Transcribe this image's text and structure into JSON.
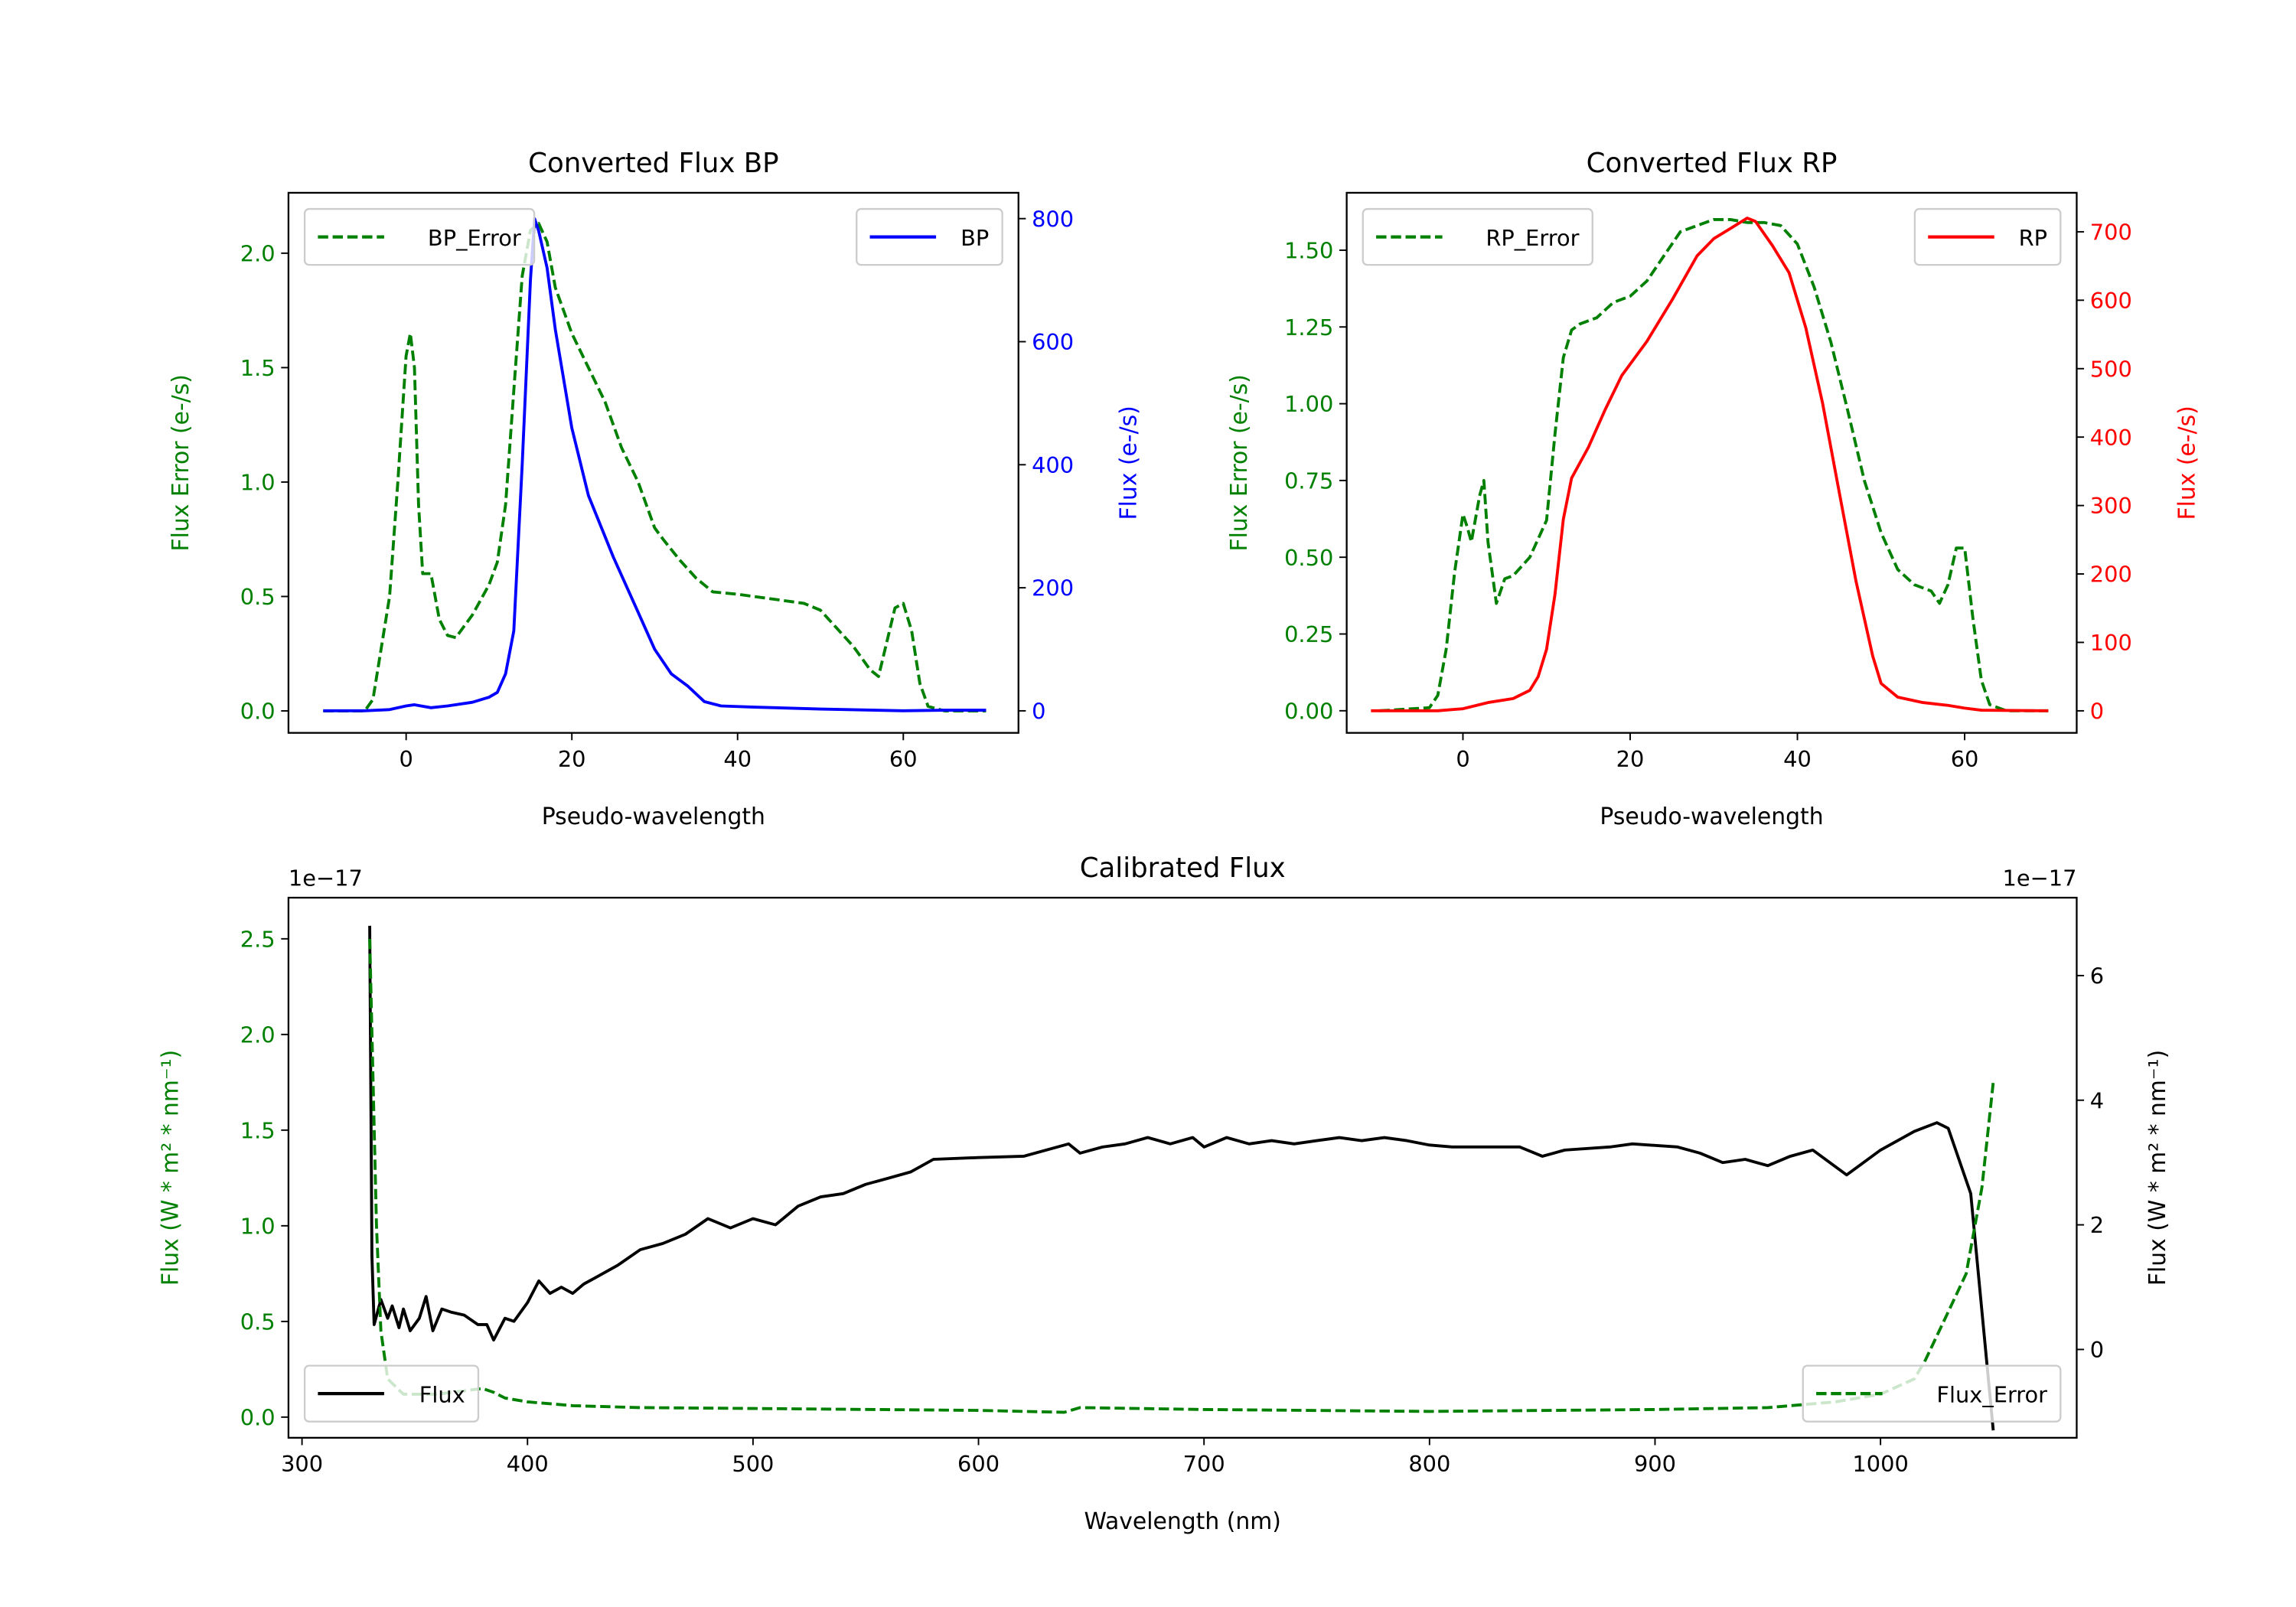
{
  "chart_data": [
    {
      "id": "bp",
      "type": "line",
      "title": "Converted Flux BP",
      "xlabel": "Pseudo-wavelength",
      "ylabel_left": "Flux Error (e-/s)",
      "ylabel_right": "Flux (e-/s)",
      "xlim": [
        -14.2,
        73.9
      ],
      "ylim_left": [
        -0.096,
        2.264
      ],
      "ylim_right": [
        -35.8,
        842
      ],
      "xticks": [
        0,
        20,
        40,
        60
      ],
      "xtick_labels": [
        "0",
        "20",
        "40",
        "60"
      ],
      "yticks_left": [
        0,
        0.5,
        1.0,
        1.5,
        2.0
      ],
      "ytick_labels_left": [
        "0.0",
        "0.5",
        "1.0",
        "1.5",
        "2.0"
      ],
      "yticks_right": [
        0,
        200,
        400,
        600,
        800
      ],
      "ytick_labels_right": [
        "0",
        "200",
        "400",
        "600",
        "800"
      ],
      "left_color": "#008000",
      "right_color": "#0000ff",
      "series": [
        {
          "name": "BP_Error",
          "axis": "left",
          "color": "#008000",
          "style": "dashed",
          "legend": "upper-left",
          "x": [
            -10,
            -5,
            -4,
            -2,
            -1,
            0,
            0.5,
            1,
            1.5,
            2,
            3,
            4,
            5,
            6,
            8,
            10,
            11,
            12,
            13,
            14,
            15,
            16,
            17,
            18,
            20,
            22,
            24,
            26,
            28,
            30,
            31,
            33,
            35,
            37,
            40,
            44,
            48,
            50,
            54,
            56,
            57,
            58,
            59,
            60,
            61,
            62,
            63,
            65,
            70
          ],
          "y": [
            0,
            0,
            0.05,
            0.5,
            1.0,
            1.55,
            1.65,
            1.5,
            0.9,
            0.6,
            0.6,
            0.4,
            0.33,
            0.32,
            0.42,
            0.55,
            0.65,
            0.9,
            1.4,
            1.9,
            2.1,
            2.13,
            2.05,
            1.85,
            1.65,
            1.5,
            1.35,
            1.15,
            1.0,
            0.8,
            0.75,
            0.66,
            0.58,
            0.52,
            0.51,
            0.49,
            0.47,
            0.44,
            0.28,
            0.18,
            0.15,
            0.3,
            0.45,
            0.47,
            0.35,
            0.12,
            0.02,
            0,
            0
          ]
        },
        {
          "name": "BP",
          "axis": "right",
          "color": "#0000ff",
          "style": "solid",
          "legend": "upper-right",
          "x": [
            -10,
            -5,
            -2,
            0,
            1,
            3,
            5,
            8,
            10,
            11,
            12,
            13,
            14,
            15,
            15.5,
            16,
            17,
            18,
            20,
            22,
            25,
            28,
            30,
            32,
            34,
            36,
            38,
            42,
            50,
            60,
            65,
            70
          ],
          "y": [
            0,
            0,
            2,
            8,
            10,
            5,
            8,
            14,
            22,
            30,
            60,
            130,
            400,
            700,
            800,
            780,
            720,
            620,
            460,
            350,
            250,
            160,
            100,
            60,
            40,
            15,
            8,
            6,
            3,
            0,
            1,
            1
          ]
        }
      ]
    },
    {
      "id": "rp",
      "type": "line",
      "title": "Converted Flux RP",
      "xlabel": "Pseudo-wavelength",
      "ylabel_left": "Flux Error (e-/s)",
      "ylabel_right": "Flux (e-/s)",
      "xlim": [
        -13.9,
        73.4
      ],
      "ylim_left": [
        -0.072,
        1.687
      ],
      "ylim_right": [
        -32.2,
        757
      ],
      "xticks": [
        0,
        20,
        40,
        60
      ],
      "xtick_labels": [
        "0",
        "20",
        "40",
        "60"
      ],
      "yticks_left": [
        0,
        0.25,
        0.5,
        0.75,
        1.0,
        1.25,
        1.5
      ],
      "ytick_labels_left": [
        "0.00",
        "0.25",
        "0.50",
        "0.75",
        "1.00",
        "1.25",
        "1.50"
      ],
      "yticks_right": [
        0,
        100,
        200,
        300,
        400,
        500,
        600,
        700
      ],
      "ytick_labels_right": [
        "0",
        "100",
        "200",
        "300",
        "400",
        "500",
        "600",
        "700"
      ],
      "left_color": "#008000",
      "right_color": "#ff0000",
      "series": [
        {
          "name": "RP_Error",
          "axis": "left",
          "color": "#008000",
          "style": "dashed",
          "legend": "upper-left",
          "x": [
            -10,
            -4,
            -3,
            -2,
            -1,
            0,
            0.5,
            1,
            2,
            2.5,
            3,
            4,
            5,
            6,
            8,
            10,
            11,
            12,
            13,
            14,
            16,
            18,
            20,
            22,
            24,
            26,
            28,
            30,
            32,
            34,
            36,
            38,
            40,
            42,
            44,
            46,
            48,
            50,
            52,
            54,
            56,
            57,
            58,
            59,
            60,
            61,
            62,
            63,
            65,
            70
          ],
          "y": [
            0,
            0.01,
            0.05,
            0.2,
            0.45,
            0.64,
            0.6,
            0.55,
            0.7,
            0.75,
            0.55,
            0.35,
            0.43,
            0.44,
            0.5,
            0.62,
            0.9,
            1.15,
            1.24,
            1.26,
            1.28,
            1.33,
            1.35,
            1.4,
            1.48,
            1.56,
            1.58,
            1.6,
            1.6,
            1.59,
            1.59,
            1.58,
            1.52,
            1.38,
            1.2,
            0.98,
            0.75,
            0.58,
            0.46,
            0.41,
            0.39,
            0.35,
            0.41,
            0.53,
            0.53,
            0.3,
            0.1,
            0.02,
            0,
            0
          ]
        },
        {
          "name": "RP",
          "axis": "right",
          "color": "#ff0000",
          "style": "solid",
          "legend": "upper-right",
          "x": [
            -11,
            -3,
            0,
            3,
            6,
            8,
            9,
            10,
            11,
            12,
            13,
            15,
            17,
            19,
            22,
            25,
            28,
            30,
            32,
            34,
            35,
            37,
            39,
            41,
            43,
            45,
            47,
            49,
            50,
            52,
            55,
            58,
            60,
            62,
            70
          ],
          "y": [
            0,
            0,
            3,
            12,
            18,
            30,
            50,
            90,
            170,
            280,
            340,
            385,
            440,
            490,
            540,
            600,
            665,
            690,
            705,
            720,
            715,
            680,
            640,
            560,
            450,
            320,
            190,
            80,
            40,
            20,
            12,
            8,
            4,
            1,
            0
          ]
        }
      ]
    },
    {
      "id": "cal",
      "type": "line",
      "title": "Calibrated Flux",
      "xlabel": "Wavelength (nm)",
      "ylabel_left": "Flux (W * m² * nm⁻¹)",
      "ylabel_right": "Flux (W * m² * nm⁻¹)",
      "offset_left": "1e−17",
      "offset_right": "1e−17",
      "xlim": [
        294,
        1087
      ],
      "ylim_left": [
        -0.108,
        2.715
      ],
      "ylim_right": [
        -1.417,
        7.25
      ],
      "xticks": [
        300,
        400,
        500,
        600,
        700,
        800,
        900,
        1000
      ],
      "xtick_labels": [
        "300",
        "400",
        "500",
        "600",
        "700",
        "800",
        "900",
        "1000"
      ],
      "yticks_left": [
        0,
        0.5,
        1.0,
        1.5,
        2.0,
        2.5
      ],
      "ytick_labels_left": [
        "0.0",
        "0.5",
        "1.0",
        "1.5",
        "2.0",
        "2.5"
      ],
      "yticks_right": [
        0,
        2,
        4,
        6
      ],
      "ytick_labels_right": [
        "0",
        "2",
        "4",
        "6"
      ],
      "left_color": "#008000",
      "right_color": "#000000",
      "series": [
        {
          "name": "Flux",
          "axis": "right",
          "color": "#000000",
          "style": "solid",
          "legend": "lower-left",
          "x": [
            330,
            331,
            332,
            335,
            338,
            340,
            343,
            345,
            348,
            352,
            355,
            358,
            362,
            366,
            372,
            378,
            382,
            385,
            390,
            394,
            400,
            405,
            410,
            415,
            420,
            425,
            430,
            440,
            450,
            460,
            470,
            480,
            490,
            500,
            510,
            520,
            530,
            540,
            550,
            560,
            570,
            580,
            600,
            620,
            640,
            645,
            655,
            665,
            675,
            685,
            695,
            700,
            710,
            720,
            730,
            740,
            750,
            760,
            770,
            780,
            790,
            800,
            810,
            820,
            840,
            850,
            860,
            880,
            890,
            910,
            920,
            930,
            940,
            950,
            960,
            970,
            985,
            1000,
            1015,
            1025,
            1030,
            1040,
            1050
          ],
          "y": [
            6.8,
            1.5,
            0.4,
            0.8,
            0.5,
            0.7,
            0.35,
            0.65,
            0.3,
            0.5,
            0.85,
            0.3,
            0.65,
            0.6,
            0.55,
            0.4,
            0.4,
            0.15,
            0.5,
            0.45,
            0.75,
            1.1,
            0.9,
            1.0,
            0.9,
            1.05,
            1.15,
            1.35,
            1.6,
            1.7,
            1.85,
            2.1,
            1.95,
            2.1,
            2.0,
            2.3,
            2.45,
            2.5,
            2.65,
            2.75,
            2.85,
            3.05,
            3.08,
            3.1,
            3.3,
            3.15,
            3.25,
            3.3,
            3.4,
            3.3,
            3.4,
            3.25,
            3.4,
            3.3,
            3.35,
            3.3,
            3.35,
            3.4,
            3.35,
            3.4,
            3.35,
            3.28,
            3.25,
            3.25,
            3.25,
            3.1,
            3.2,
            3.25,
            3.3,
            3.25,
            3.15,
            3.0,
            3.05,
            2.95,
            3.1,
            3.2,
            2.8,
            3.2,
            3.5,
            3.64,
            3.55,
            2.5,
            -1.3
          ]
        },
        {
          "name": "Flux_Error",
          "axis": "left",
          "color": "#008000",
          "style": "dashed",
          "legend": "lower-right",
          "x": [
            330,
            333,
            335,
            338,
            345,
            360,
            380,
            385,
            390,
            400,
            420,
            450,
            500,
            600,
            638,
            645,
            700,
            800,
            900,
            950,
            980,
            1000,
            1015,
            1020,
            1030,
            1038,
            1045,
            1050
          ],
          "y": [
            2.5,
            1.0,
            0.45,
            0.2,
            0.12,
            0.12,
            0.15,
            0.13,
            0.1,
            0.08,
            0.06,
            0.05,
            0.045,
            0.035,
            0.025,
            0.05,
            0.04,
            0.03,
            0.04,
            0.05,
            0.08,
            0.12,
            0.2,
            0.3,
            0.55,
            0.75,
            1.2,
            1.75
          ]
        }
      ]
    }
  ]
}
